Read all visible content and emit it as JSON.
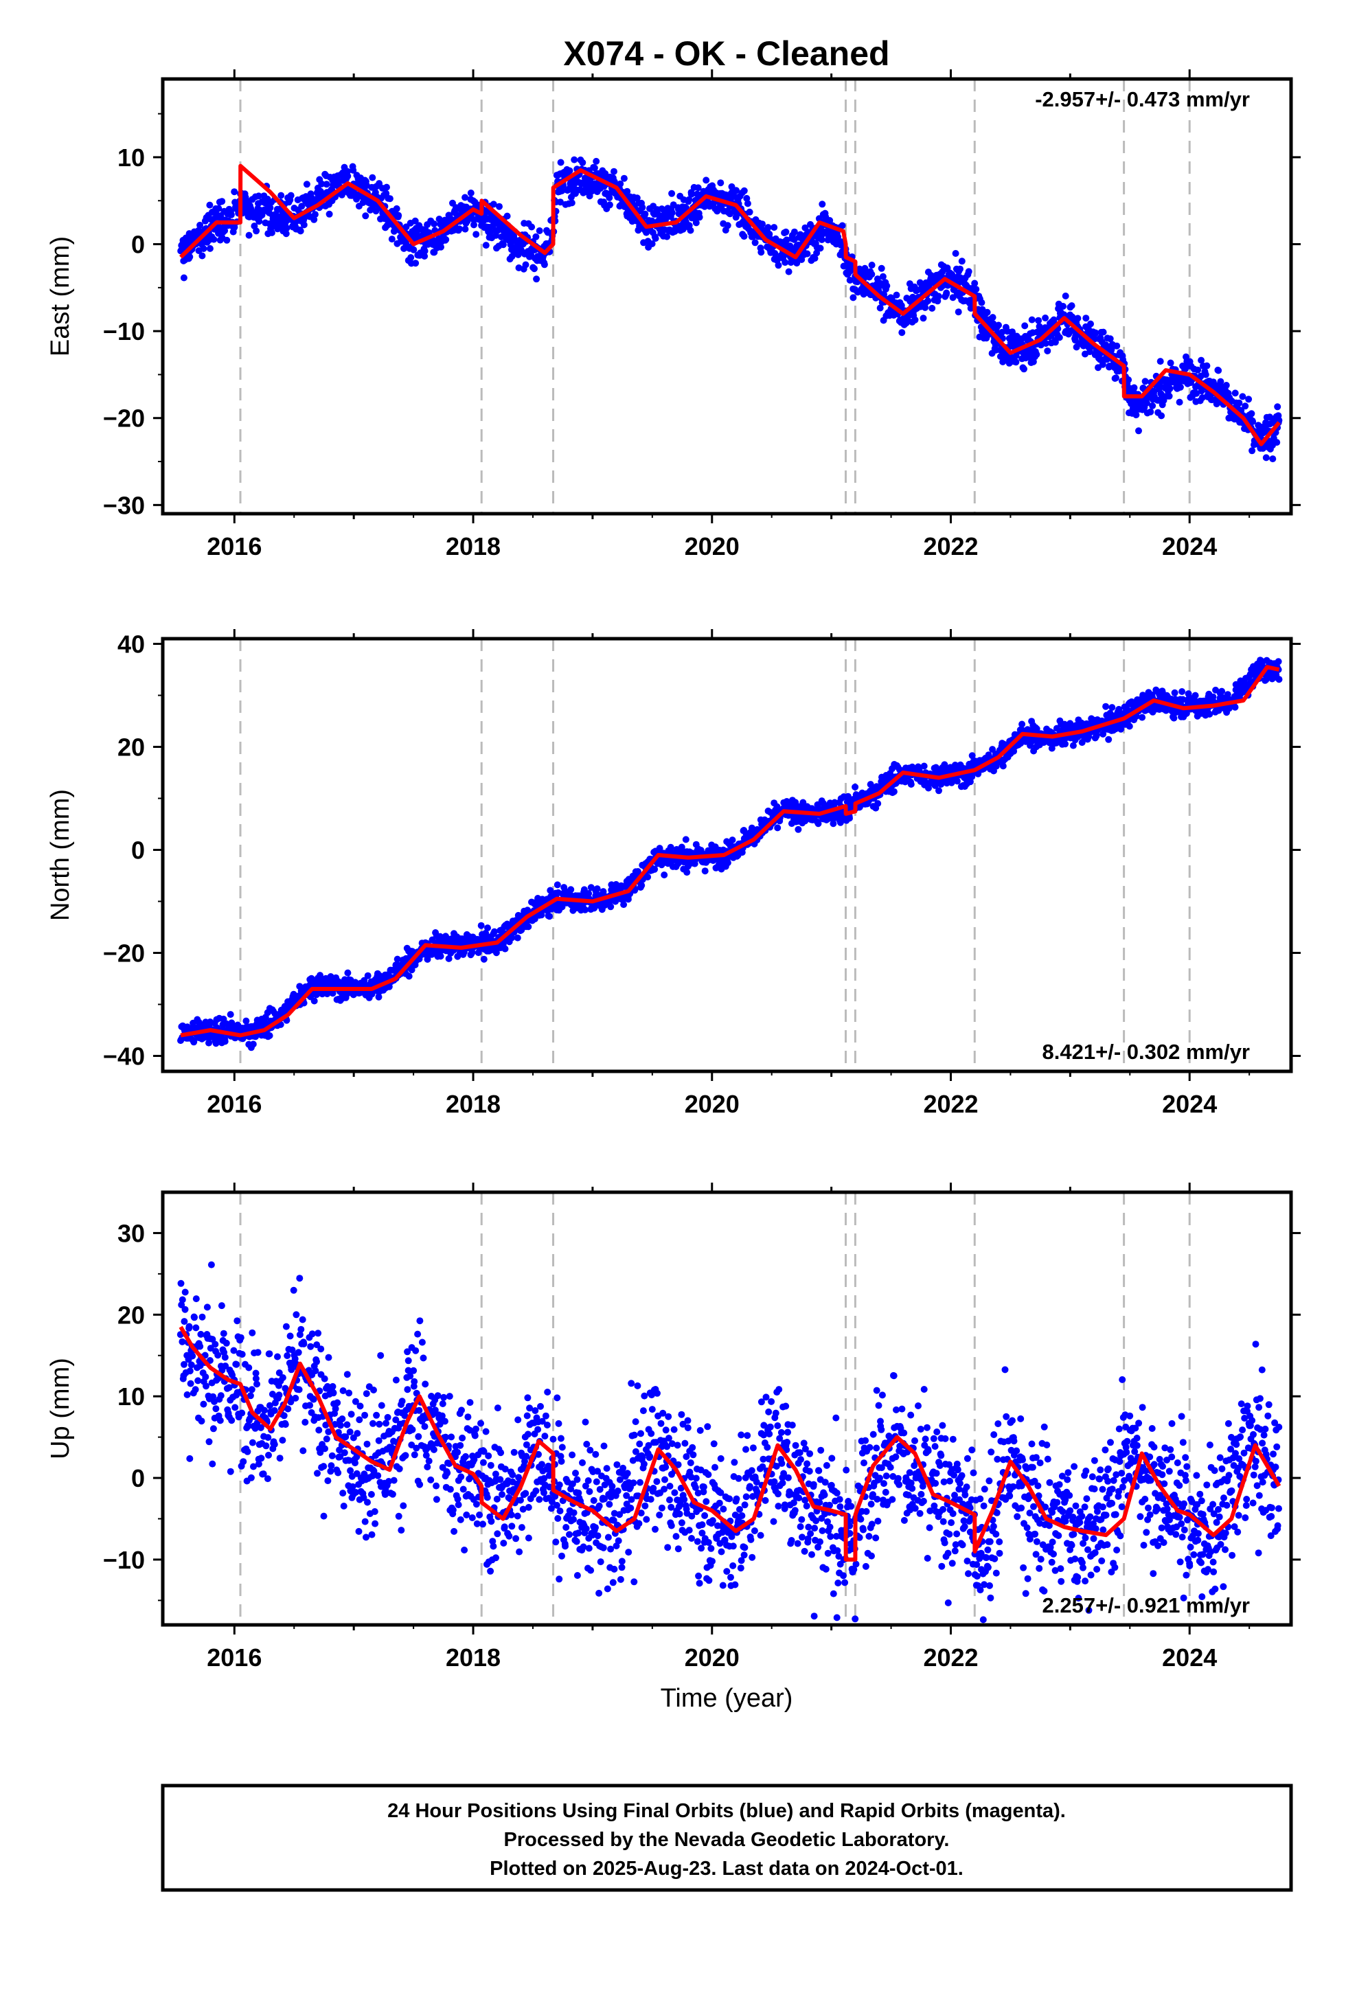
{
  "title": "X074  - OK - Cleaned",
  "xlabel": "Time (year)",
  "x_ticks": [
    "2016",
    "2018",
    "2020",
    "2022",
    "2024"
  ],
  "x_tick_values": [
    2016,
    2018,
    2020,
    2022,
    2024
  ],
  "xlim": [
    2015.4,
    2024.85
  ],
  "colors": {
    "points": "#0000ff",
    "fit": "#ff0000",
    "steps": "#bbbbbb",
    "frame": "#000000"
  },
  "footer": {
    "line1": "24 Hour Positions Using Final Orbits (blue) and Rapid Orbits (magenta).",
    "line2": "Processed by the Nevada Geodetic Laboratory.",
    "line3": "Plotted on 2025-Aug-23. Last data on 2024-Oct-01."
  },
  "chart_data": [
    {
      "type": "scatter",
      "ylabel": "East (mm)",
      "ylim": [
        -31,
        19
      ],
      "y_ticks": [
        "10",
        "0",
        "−10",
        "−20",
        "−30"
      ],
      "y_tick_values": [
        10,
        0,
        -10,
        -20,
        -30
      ],
      "rate": "-2.957+/- 0.473 mm/yr",
      "rate_position": "top-right",
      "step_epochs": [
        2016.05,
        2018.07,
        2018.67,
        2021.12,
        2021.2,
        2022.2,
        2023.45,
        2024.0
      ],
      "series": [
        {
          "style": "points",
          "scatter": 1.1,
          "x": [
            2015.55,
            2015.7,
            2015.85,
            2016.0,
            2016.05,
            2016.1,
            2016.3,
            2016.5,
            2016.7,
            2016.95,
            2017.2,
            2017.5,
            2017.75,
            2018.0,
            2018.06,
            2018.2,
            2018.4,
            2018.6,
            2018.66,
            2018.7,
            2018.9,
            2019.2,
            2019.45,
            2019.7,
            2019.95,
            2020.2,
            2020.45,
            2020.7,
            2020.95,
            2021.1,
            2021.15,
            2021.4,
            2021.6,
            2021.95,
            2022.18,
            2022.25,
            2022.5,
            2022.75,
            2022.95,
            2023.2,
            2023.44,
            2023.5,
            2023.75,
            2023.95,
            2024.2,
            2024.45,
            2024.6,
            2024.75
          ],
          "y": [
            -1.5,
            0.5,
            2.5,
            3,
            5,
            4.5,
            3.5,
            3,
            5,
            7,
            5,
            0,
            1.5,
            4,
            3.5,
            2,
            -0.5,
            -1,
            0.5,
            6.5,
            8,
            6,
            2,
            3,
            5.5,
            4.5,
            0.5,
            -1,
            2,
            0,
            -3,
            -5.5,
            -8,
            -4,
            -5.5,
            -8.5,
            -12.5,
            -11,
            -8.5,
            -11.5,
            -14,
            -18,
            -17,
            -15,
            -16,
            -20,
            -23,
            -20.5
          ]
        },
        {
          "style": "line",
          "x": [
            2015.55,
            2015.7,
            2015.85,
            2016.0,
            2016.05,
            2016.051,
            2016.3,
            2016.5,
            2016.7,
            2016.95,
            2017.2,
            2017.5,
            2017.75,
            2018.0,
            2018.07,
            2018.071,
            2018.4,
            2018.6,
            2018.67,
            2018.671,
            2018.9,
            2019.2,
            2019.45,
            2019.7,
            2019.95,
            2020.2,
            2020.45,
            2020.7,
            2020.9,
            2021.1,
            2021.12,
            2021.121,
            2021.2,
            2021.201,
            2021.4,
            2021.6,
            2021.95,
            2022.2,
            2022.201,
            2022.5,
            2022.75,
            2022.95,
            2023.2,
            2023.45,
            2023.451,
            2023.6,
            2023.8,
            2024.0,
            2024.001,
            2024.2,
            2024.45,
            2024.6,
            2024.75
          ],
          "y": [
            -1.5,
            0.5,
            2.5,
            2.5,
            2.5,
            9,
            6,
            3,
            4.5,
            7,
            5,
            0,
            1.5,
            4,
            3.5,
            5,
            1,
            -1,
            0,
            6.5,
            8.5,
            6.5,
            2,
            2.5,
            5.5,
            4.5,
            0.5,
            -1.5,
            2.5,
            1.5,
            0,
            -1.5,
            -2,
            -3.5,
            -6,
            -8,
            -4,
            -6,
            -8,
            -12.5,
            -11,
            -8.5,
            -11.5,
            -14,
            -17.5,
            -17.5,
            -14.5,
            -15,
            -15,
            -17,
            -20,
            -23,
            -20.5
          ]
        }
      ]
    },
    {
      "type": "scatter",
      "ylabel": "North (mm)",
      "ylim": [
        -43,
        41
      ],
      "y_ticks": [
        "40",
        "20",
        "0",
        "−20",
        "−40"
      ],
      "y_tick_values": [
        40,
        20,
        0,
        -20,
        -40
      ],
      "rate": "8.421+/- 0.302 mm/yr",
      "rate_position": "bottom-right",
      "step_epochs": [
        2016.05,
        2018.07,
        2018.67,
        2021.12,
        2021.2,
        2022.2,
        2023.45,
        2024.0
      ],
      "series": [
        {
          "style": "points",
          "scatter": 1.1,
          "x": [
            2015.55,
            2015.8,
            2016.0,
            2016.2,
            2016.4,
            2016.6,
            2016.8,
            2017.05,
            2017.3,
            2017.6,
            2017.9,
            2018.2,
            2018.45,
            2018.7,
            2019.0,
            2019.3,
            2019.55,
            2019.8,
            2020.1,
            2020.35,
            2020.6,
            2020.85,
            2021.15,
            2021.35,
            2021.6,
            2021.9,
            2022.15,
            2022.35,
            2022.6,
            2022.85,
            2023.1,
            2023.4,
            2023.65,
            2023.9,
            2024.15,
            2024.35,
            2024.6,
            2024.75
          ],
          "y": [
            -35.5,
            -35,
            -35.5,
            -35,
            -32,
            -27,
            -26.5,
            -27,
            -25,
            -19,
            -18.5,
            -18,
            -13,
            -9.5,
            -10,
            -8,
            -1,
            -1.5,
            -1,
            3,
            7.5,
            7,
            8,
            11,
            15,
            14,
            15,
            17.5,
            22,
            22,
            23,
            25,
            29,
            28,
            28,
            29,
            35,
            35
          ]
        },
        {
          "style": "line",
          "x": [
            2015.55,
            2015.8,
            2016.05,
            2016.25,
            2016.45,
            2016.65,
            2016.9,
            2017.15,
            2017.35,
            2017.6,
            2017.9,
            2018.2,
            2018.45,
            2018.7,
            2019.0,
            2019.3,
            2019.55,
            2019.8,
            2020.1,
            2020.35,
            2020.6,
            2020.9,
            2021.12,
            2021.121,
            2021.2,
            2021.201,
            2021.4,
            2021.6,
            2021.9,
            2022.2,
            2022.4,
            2022.6,
            2022.85,
            2023.1,
            2023.45,
            2023.7,
            2023.95,
            2024.2,
            2024.45,
            2024.65,
            2024.75
          ],
          "y": [
            -36,
            -35,
            -36,
            -35,
            -32,
            -27,
            -27,
            -27,
            -25,
            -18.5,
            -19,
            -18,
            -13,
            -9.5,
            -10,
            -8,
            -1,
            -1.5,
            -1,
            2,
            7.5,
            7,
            8.5,
            7,
            7.5,
            9,
            11,
            15,
            14,
            15.5,
            18,
            22.5,
            22,
            23,
            25.5,
            29,
            27.5,
            28,
            29,
            35.5,
            35
          ]
        }
      ]
    },
    {
      "type": "scatter",
      "ylabel": "Up (mm)",
      "ylim": [
        -18,
        35
      ],
      "y_ticks": [
        "30",
        "20",
        "10",
        "0",
        "−10"
      ],
      "y_tick_values": [
        30,
        20,
        10,
        0,
        -10
      ],
      "rate": "2.257+/- 0.921 mm/yr",
      "rate_position": "bottom-right",
      "step_epochs": [
        2016.05,
        2018.07,
        2018.67,
        2021.12,
        2021.2,
        2022.2,
        2023.45,
        2024.0
      ],
      "series": [
        {
          "style": "points",
          "scatter": 4.2,
          "x": [
            2015.55,
            2015.7,
            2015.85,
            2016.0,
            2016.1,
            2016.3,
            2016.5,
            2016.7,
            2016.9,
            2017.15,
            2017.3,
            2017.5,
            2017.7,
            2017.9,
            2018.1,
            2018.3,
            2018.5,
            2018.7,
            2018.9,
            2019.2,
            2019.5,
            2019.7,
            2019.95,
            2020.2,
            2020.5,
            2020.7,
            2020.95,
            2021.15,
            2021.35,
            2021.5,
            2021.7,
            2021.95,
            2022.15,
            2022.25,
            2022.5,
            2022.7,
            2022.95,
            2023.2,
            2023.5,
            2023.7,
            2023.95,
            2024.2,
            2024.5,
            2024.75
          ],
          "y": [
            18.5,
            15,
            12,
            11.5,
            10,
            7,
            14,
            9,
            4.5,
            1.5,
            2,
            10,
            5,
            1,
            -1,
            -4,
            5,
            -1.5,
            -3.5,
            -6,
            4,
            -0.5,
            -4,
            -6.5,
            4,
            -1,
            -3.5,
            -9,
            1.5,
            5,
            0,
            -2.5,
            -4,
            -9,
            2,
            -4,
            -5,
            -7,
            3,
            -1,
            -4,
            -7,
            4,
            -1
          ]
        },
        {
          "style": "line",
          "x": [
            2015.55,
            2015.65,
            2015.8,
            2015.95,
            2016.05,
            2016.15,
            2016.3,
            2016.42,
            2016.55,
            2016.7,
            2016.85,
            2017.0,
            2017.15,
            2017.3,
            2017.45,
            2017.55,
            2017.7,
            2017.85,
            2018.0,
            2018.07,
            2018.071,
            2018.25,
            2018.4,
            2018.55,
            2018.67,
            2018.671,
            2018.85,
            2019.0,
            2019.2,
            2019.35,
            2019.55,
            2019.7,
            2019.85,
            2020.0,
            2020.2,
            2020.35,
            2020.55,
            2020.7,
            2020.85,
            2021.0,
            2021.12,
            2021.121,
            2021.2,
            2021.201,
            2021.35,
            2021.55,
            2021.7,
            2021.85,
            2022.0,
            2022.2,
            2022.201,
            2022.35,
            2022.5,
            2022.65,
            2022.8,
            2022.95,
            2023.1,
            2023.3,
            2023.45,
            2023.6,
            2023.75,
            2023.9,
            2024.0,
            2024.001,
            2024.2,
            2024.35,
            2024.55,
            2024.75
          ],
          "y": [
            18.5,
            16,
            13.5,
            12,
            11.5,
            8,
            6,
            9,
            14,
            10,
            5,
            3.5,
            2,
            1,
            7,
            10,
            5.5,
            1.5,
            0.5,
            -1,
            -3,
            -5,
            -1,
            4.5,
            3,
            -1.5,
            -3,
            -4,
            -6.5,
            -5,
            3.5,
            1,
            -3,
            -4,
            -6.5,
            -5,
            4,
            1,
            -3.5,
            -4,
            -4.5,
            -10,
            -10,
            -4.5,
            1.5,
            5,
            3,
            -2,
            -3,
            -4.5,
            -9,
            -4,
            2,
            -1,
            -5,
            -6,
            -6.5,
            -7,
            -5,
            3,
            -1,
            -4,
            -4.5,
            -4.5,
            -7,
            -5,
            4,
            -1
          ]
        }
      ]
    }
  ]
}
